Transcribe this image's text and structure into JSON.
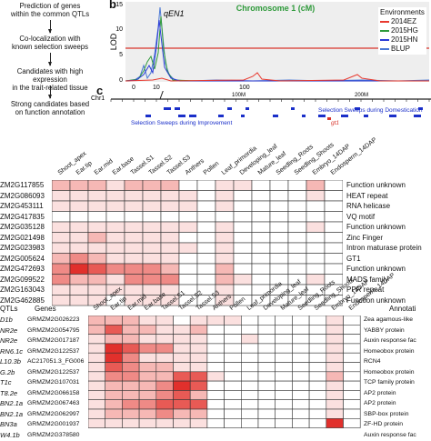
{
  "flowchart": {
    "steps": [
      "Prediction of genes\nwithin the common QTLs",
      "Co-localization with\nknown selection sweeps",
      "Candidates with high expression\nin the trait-related tissue",
      "Strong candidates based\non function annotation"
    ]
  },
  "panel_b": {
    "label": "b",
    "title": "Chromosome 1 (cM)",
    "qtl_label": "qEN1",
    "ylabel": "LOD",
    "yticks": [
      "0",
      "5",
      "10",
      "15"
    ],
    "xticks": [
      "0",
      "10",
      "100"
    ],
    "legend_title": "Environments",
    "legend": [
      {
        "name": "2014EZ",
        "color": "#e8392f"
      },
      {
        "name": "2015HG",
        "color": "#2e9a3a"
      },
      {
        "name": "2015HN",
        "color": "#2a3bd6"
      },
      {
        "name": "BLUP",
        "color": "#4a78d4"
      }
    ],
    "threshold_color": "#d9342b"
  },
  "panel_c": {
    "label": "c",
    "chr_label": "Chr1",
    "ticks": [
      "0",
      "100M",
      "200M"
    ],
    "sweeps_improvement": "Selection Sweeps during Improvement",
    "sweeps_domestication": "Selection Sweeps during Domestication",
    "gene_marker": "gt1"
  },
  "heatmap1": {
    "columns": [
      "Shoot_apex",
      "Ear.tip",
      "Ear.mid",
      "Ear.base",
      "Tassel.S1",
      "Tassel.S2",
      "Tassel.S3",
      "Anthers",
      "Pollen",
      "Leaf_primordia",
      "Developing_leaf",
      "Mature_leaf",
      "Seedling_Roots",
      "Seedling_Shoots",
      "Embryo_14DAP",
      "Endosperm_14DAP"
    ],
    "genes": [
      "ZM2G117855",
      "ZM2G086093",
      "ZM2G453111",
      "ZM2G417835",
      "ZM2G035128",
      "ZM2G021498",
      "ZM2G023983",
      "ZM2G005624",
      "ZM2G472693",
      "ZM2G099522",
      "ZM2G163043",
      "ZM2G462885"
    ],
    "annotations": [
      "Function unknown",
      "HEAT repeat",
      "RNA helicase",
      "VQ motif",
      "Function unknown",
      "Zinc Finger",
      "Intron maturase protein",
      "GT1",
      "Function unknown",
      "MADS family",
      "PPR repeat",
      "Function unknown"
    ],
    "values": [
      [
        2,
        2,
        2,
        1,
        2,
        2,
        2,
        0,
        0,
        1,
        1,
        0,
        0,
        0,
        2,
        0
      ],
      [
        1,
        1,
        1,
        1,
        1,
        1,
        1,
        1,
        0,
        1,
        0,
        0,
        0,
        0,
        1,
        0
      ],
      [
        1,
        1,
        1,
        1,
        1,
        1,
        1,
        1,
        0,
        1,
        0,
        0,
        0,
        0,
        0,
        0
      ],
      [
        0,
        0,
        0,
        0,
        0,
        0,
        0,
        0,
        0,
        0,
        0,
        0,
        0,
        0,
        0,
        0
      ],
      [
        1,
        1,
        1,
        1,
        1,
        1,
        1,
        1,
        0,
        1,
        0,
        0,
        0,
        0,
        1,
        0
      ],
      [
        1,
        1,
        2,
        1,
        1,
        1,
        1,
        0,
        0,
        1,
        0,
        0,
        0,
        0,
        0,
        0
      ],
      [
        1,
        1,
        1,
        1,
        1,
        1,
        1,
        1,
        0,
        1,
        0,
        0,
        0,
        0,
        0,
        0
      ],
      [
        2,
        3,
        2,
        1,
        1,
        1,
        1,
        0,
        0,
        1,
        0,
        0,
        0,
        0,
        0,
        0
      ],
      [
        3,
        5,
        4,
        3,
        3,
        3,
        2,
        0,
        0,
        2,
        0,
        0,
        0,
        0,
        0,
        0
      ],
      [
        3,
        2,
        2,
        1,
        3,
        3,
        3,
        0,
        0,
        2,
        1,
        0,
        0,
        0,
        1,
        0
      ],
      [
        1,
        1,
        1,
        1,
        1,
        1,
        1,
        0,
        0,
        1,
        0,
        0,
        0,
        0,
        0,
        0
      ],
      [
        1,
        1,
        1,
        0,
        1,
        1,
        1,
        0,
        0,
        1,
        0,
        0,
        0,
        0,
        0,
        0
      ]
    ]
  },
  "heatmap2": {
    "header_left": "QTLs",
    "header_genes": "Genes",
    "header_annot": "Annotati",
    "columns": [
      "Shoot_apex",
      "Ear.tip",
      "Ear.mid",
      "Ear.base",
      "Tassel.S1",
      "Tassel.S2",
      "Tassel.S3",
      "Anthers",
      "Pollen",
      "Leaf_primordia",
      "Developing_leaf",
      "Mature_leaf",
      "Seedling_Roots",
      "Seedling_Shoots",
      "Embryo_14DAP",
      "Endosperm_14DAP"
    ],
    "qtls": [
      "D1b",
      "NR2e",
      "NR2e",
      "RN6.1c",
      "L10.3b",
      "G.2b",
      "T1c",
      "T8.2e",
      "BN2.1a",
      "BN2.1a",
      "BN3a",
      "W4.1b"
    ],
    "genes": [
      "GRMZM2G026223",
      "GRMZM2G054795",
      "GRMZM2G017187",
      "GRMZM2G122537",
      "AC217051.3_FG006",
      "GRMZM2G122537",
      "GRMZM2G107031",
      "GRMZM2G066158",
      "GRMZM2G067463",
      "GRMZM2G062997",
      "GRMZM2G001937",
      "GRMZM2G378580"
    ],
    "annotations": [
      "Zea agamous-like",
      "YABBY protein",
      "Auxin response fac",
      "Homeobox protein",
      "RCN4",
      "Homeobox protein",
      "TCP family protein",
      "AP2 protein",
      "AP2 protein",
      "SBP-box protein",
      "ZF-HD protein",
      "Auxin response fac"
    ],
    "values": [
      [
        2,
        2,
        2,
        1,
        1,
        0,
        1,
        1,
        1,
        0,
        0,
        0,
        0,
        0,
        1,
        0
      ],
      [
        2,
        4,
        2,
        2,
        1,
        1,
        2,
        0,
        0,
        0,
        0,
        0,
        0,
        0,
        1,
        0
      ],
      [
        1,
        2,
        2,
        1,
        1,
        1,
        1,
        0,
        0,
        1,
        0,
        0,
        0,
        0,
        1,
        0
      ],
      [
        1,
        5,
        4,
        3,
        3,
        1,
        1,
        0,
        0,
        0,
        0,
        0,
        0,
        0,
        1,
        0
      ],
      [
        1,
        5,
        3,
        1,
        1,
        1,
        1,
        0,
        0,
        0,
        0,
        0,
        0,
        0,
        1,
        0
      ],
      [
        1,
        4,
        3,
        2,
        2,
        1,
        1,
        0,
        0,
        0,
        0,
        0,
        0,
        0,
        1,
        0
      ],
      [
        1,
        3,
        3,
        2,
        2,
        4,
        4,
        1,
        0,
        0,
        0,
        0,
        0,
        0,
        2,
        0
      ],
      [
        1,
        2,
        2,
        2,
        3,
        5,
        4,
        0,
        0,
        0,
        0,
        0,
        0,
        0,
        1,
        0
      ],
      [
        1,
        2,
        2,
        2,
        3,
        4,
        2,
        0,
        0,
        0,
        0,
        0,
        0,
        0,
        1,
        0
      ],
      [
        1,
        2,
        3,
        3,
        4,
        4,
        4,
        0,
        0,
        0,
        0,
        0,
        0,
        0,
        1,
        0
      ],
      [
        1,
        2,
        2,
        2,
        3,
        2,
        2,
        0,
        0,
        0,
        0,
        0,
        0,
        0,
        1,
        0
      ],
      [
        1,
        1,
        1,
        1,
        1,
        1,
        1,
        0,
        0,
        0,
        0,
        0,
        0,
        0,
        5,
        0
      ]
    ]
  },
  "colors": {
    "scale": [
      "#ffffff",
      "#fbe0df",
      "#f6b8b5",
      "#ef8a86",
      "#e85a55",
      "#e1302c"
    ]
  }
}
